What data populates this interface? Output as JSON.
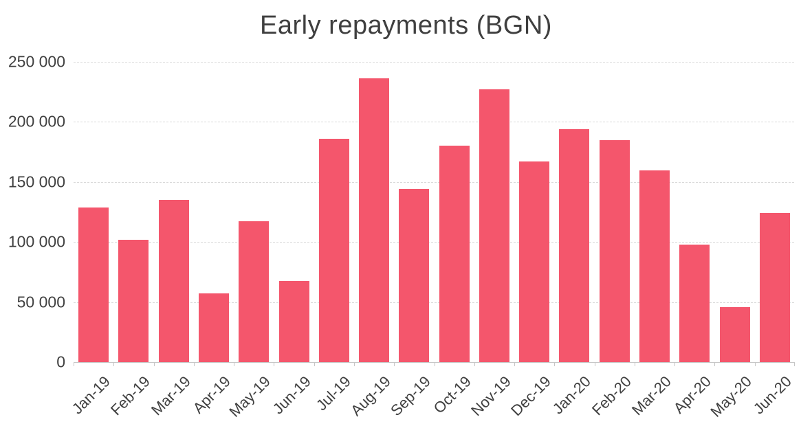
{
  "chart_data": {
    "type": "bar",
    "title": "Early repayments (BGN)",
    "categories": [
      "Jan-19",
      "Feb-19",
      "Mar-19",
      "Apr-19",
      "May-19",
      "Jun-19",
      "Jul-19",
      "Aug-19",
      "Sep-19",
      "Oct-19",
      "Nov-19",
      "Dec-19",
      "Jan-20",
      "Feb-20",
      "Mar-20",
      "Apr-20",
      "May-20",
      "Jun-20"
    ],
    "values": [
      129000,
      102000,
      135000,
      57500,
      117000,
      67500,
      186000,
      236000,
      144000,
      180000,
      227000,
      167000,
      194000,
      185000,
      159500,
      98000,
      46000,
      124000
    ],
    "xlabel": "",
    "ylabel": "",
    "ylim": [
      0,
      250000
    ],
    "y_ticks": [
      "250 000",
      "200 000",
      "150 000",
      "100 000",
      "50 000",
      "0"
    ],
    "y_tick_values": [
      250000,
      200000,
      150000,
      100000,
      50000,
      0
    ],
    "grid": "horizontal-dashed",
    "legend": "none",
    "x_label_rotation_deg": -45,
    "bar_color": "#f4566c",
    "text_color": "#404040",
    "title_color": "#3f3f3f",
    "grid_color": "#d9d9d9",
    "axis_color": "#c6c6c6"
  }
}
